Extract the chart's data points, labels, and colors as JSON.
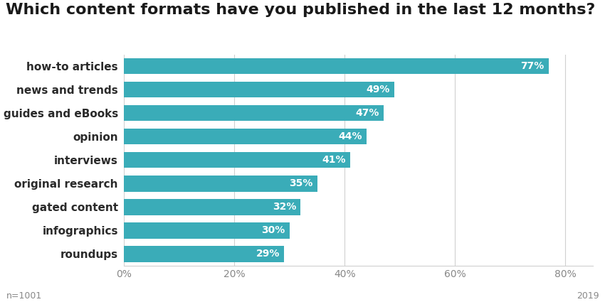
{
  "title": "Which content formats have you published in the last 12 months?",
  "categories": [
    "roundups",
    "infographics",
    "gated content",
    "original research",
    "interviews",
    "opinion",
    "guides and eBooks",
    "news and trends",
    "how-to articles"
  ],
  "values": [
    29,
    30,
    32,
    35,
    41,
    44,
    47,
    49,
    77
  ],
  "bar_color": "#3aacb8",
  "label_color": "#ffffff",
  "title_color": "#1a1a1a",
  "category_color": "#2a2a2a",
  "axis_label_color": "#888888",
  "background_color": "#ffffff",
  "footnote_left": "n=1001",
  "footnote_right": "2019",
  "xlim": [
    0,
    85
  ],
  "xticks": [
    0,
    20,
    40,
    60,
    80
  ],
  "xtick_labels": [
    "0%",
    "20%",
    "40%",
    "60%",
    "80%"
  ],
  "title_fontsize": 16,
  "bar_label_fontsize": 10,
  "tick_label_fontsize": 10,
  "category_fontsize": 11,
  "footnote_fontsize": 9,
  "bar_height": 0.68
}
